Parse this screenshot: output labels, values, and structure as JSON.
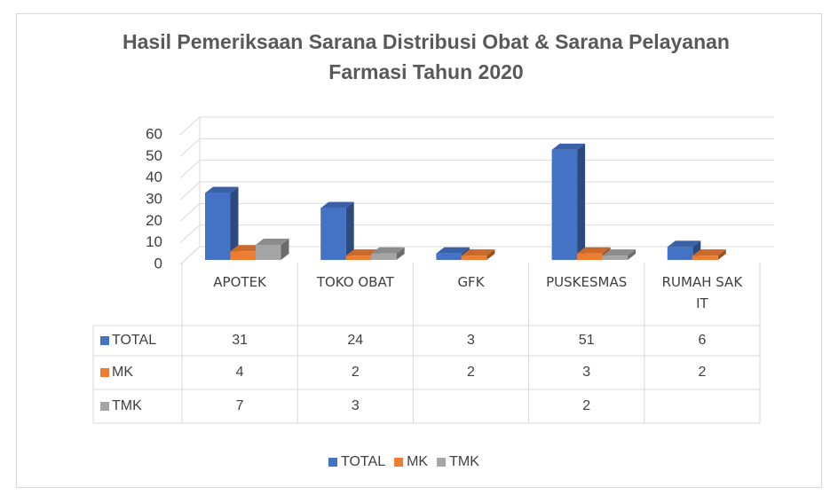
{
  "chart_data": {
    "type": "bar3d",
    "title": "Hasil Pemeriksaan Sarana Distribusi Obat & Sarana Pelayanan Farmasi Tahun 2020",
    "categories": [
      "APOTEK",
      "TOKO OBAT",
      "GFK",
      "PUSKESMAS",
      "RUMAH SAKIT"
    ],
    "series": [
      {
        "name": "TOTAL",
        "color": "#4472c4",
        "values": [
          31,
          24,
          3,
          51,
          6
        ]
      },
      {
        "name": "MK",
        "color": "#ed7d31",
        "values": [
          4,
          2,
          2,
          3,
          2
        ]
      },
      {
        "name": "TMK",
        "color": "#a5a5a5",
        "values": [
          7,
          3,
          null,
          2,
          null
        ]
      }
    ],
    "ylim": [
      0,
      60
    ],
    "yticks": [
      0,
      10,
      20,
      30,
      40,
      50,
      60
    ],
    "grid": true,
    "legend": "bottom"
  }
}
